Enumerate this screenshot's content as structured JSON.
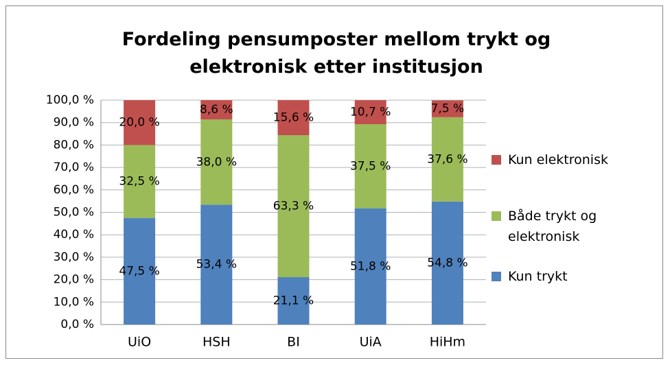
{
  "chart_data": {
    "type": "stacked_bar",
    "title": "Fordeling pensumposter mellom trykt og elektronisk etter institusjon",
    "categories": [
      "UiO",
      "HSH",
      "BI",
      "UiA",
      "HiHm"
    ],
    "series": [
      {
        "name": "Kun trykt",
        "color": "#4f81bd",
        "values": [
          47.5,
          53.4,
          21.1,
          51.8,
          54.8
        ],
        "value_labels": [
          "47,5 %",
          "53,4 %",
          "21,1 %",
          "51,8 %",
          "54,8 %"
        ]
      },
      {
        "name": "Både trykt og elektronisk",
        "color": "#9bbb59",
        "values": [
          32.5,
          38.0,
          63.3,
          37.5,
          37.6
        ],
        "value_labels": [
          "32,5 %",
          "38,0 %",
          "63,3 %",
          "37,5 %",
          "37,6 %"
        ]
      },
      {
        "name": "Kun elektronisk",
        "color": "#c0504d",
        "values": [
          20.0,
          8.6,
          15.6,
          10.7,
          7.5
        ],
        "value_labels": [
          "20,0 %",
          "8,6 %",
          "15,6 %",
          "10,7 %",
          "7,5 %"
        ]
      }
    ],
    "ylim": [
      0,
      100
    ],
    "yticks": [
      {
        "value": 0,
        "label": "0,0 %"
      },
      {
        "value": 10,
        "label": "10,0 %"
      },
      {
        "value": 20,
        "label": "20,0 %"
      },
      {
        "value": 30,
        "label": "30,0 %"
      },
      {
        "value": 40,
        "label": "40,0 %"
      },
      {
        "value": 50,
        "label": "50,0 %"
      },
      {
        "value": 60,
        "label": "60,0 %"
      },
      {
        "value": 70,
        "label": "70,0 %"
      },
      {
        "value": 80,
        "label": "80,0 %"
      },
      {
        "value": 90,
        "label": "90,0 %"
      },
      {
        "value": 100,
        "label": "100,0 %"
      }
    ],
    "grid": true,
    "legend": "right"
  }
}
